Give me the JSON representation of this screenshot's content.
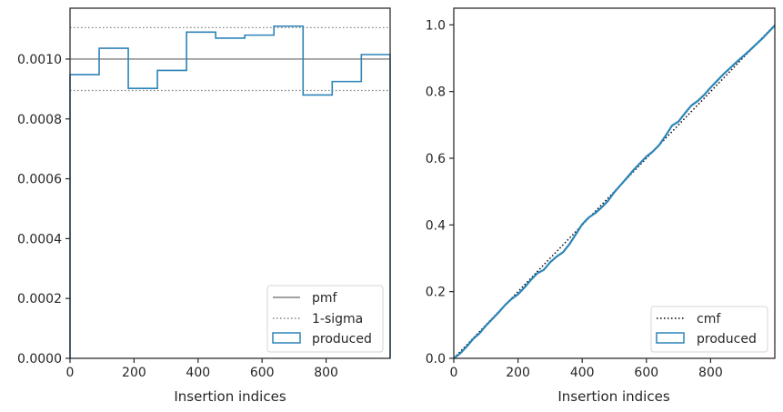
{
  "chart_data": [
    {
      "type": "step",
      "xlabel": "Insertion indices",
      "ylabel": "",
      "xlim": [
        0,
        1000
      ],
      "ylim": [
        0,
        0.00117
      ],
      "xticks": [
        0,
        200,
        400,
        600,
        800
      ],
      "xtick_labels": [
        "0",
        "200",
        "400",
        "600",
        "800"
      ],
      "yticks": [
        0,
        0.0002,
        0.0004,
        0.0006,
        0.0008,
        0.001
      ],
      "ytick_labels": [
        "0.0000",
        "0.0002",
        "0.0004",
        "0.0006",
        "0.0008",
        "0.0010"
      ],
      "reference_lines": [
        {
          "name": "pmf",
          "y": 0.001,
          "color": "#808080",
          "style": "solid"
        },
        {
          "name": "1-sigma",
          "y": 0.001105,
          "color": "#808080",
          "style": "dotted"
        },
        {
          "name": "1-sigma-lower",
          "y": 0.000895,
          "color": "#808080",
          "style": "dotted"
        }
      ],
      "series": [
        {
          "name": "produced",
          "color": "#2c84b8",
          "bin_edges": [
            0,
            91,
            182,
            273,
            364,
            455,
            546,
            637,
            728,
            819,
            910,
            1000
          ],
          "values": [
            0.000948,
            0.001036,
            0.000902,
            0.000962,
            0.00109,
            0.00107,
            0.00108,
            0.00111,
            0.00088,
            0.000925,
            0.001015
          ]
        }
      ],
      "legend": {
        "position": "lower-right",
        "entries": [
          "pmf",
          "1-sigma",
          "produced"
        ]
      },
      "grid": false
    },
    {
      "type": "line",
      "xlabel": "Insertion indices",
      "ylabel": "",
      "xlim": [
        0,
        1000
      ],
      "ylim": [
        0,
        1.05
      ],
      "xticks": [
        0,
        200,
        400,
        600,
        800
      ],
      "xtick_labels": [
        "0",
        "200",
        "400",
        "600",
        "800"
      ],
      "yticks": [
        0,
        0.2,
        0.4,
        0.6,
        0.8,
        1.0
      ],
      "ytick_labels": [
        "0.0",
        "0.2",
        "0.4",
        "0.6",
        "0.8",
        "1.0"
      ],
      "series": [
        {
          "name": "cmf",
          "color": "#000000",
          "style": "dotted",
          "x": [
            0,
            1000
          ],
          "y": [
            0,
            1.0
          ]
        },
        {
          "name": "produced",
          "color": "#2c84b8",
          "style": "solid",
          "x": [
            0,
            20,
            40,
            60,
            80,
            100,
            120,
            140,
            160,
            180,
            200,
            220,
            240,
            260,
            280,
            300,
            320,
            340,
            360,
            380,
            400,
            420,
            440,
            460,
            480,
            500,
            520,
            540,
            560,
            580,
            600,
            620,
            640,
            660,
            680,
            700,
            720,
            740,
            760,
            780,
            800,
            820,
            840,
            860,
            880,
            900,
            920,
            940,
            960,
            980,
            1000
          ],
          "y": [
            0,
            0.015,
            0.035,
            0.058,
            0.075,
            0.098,
            0.118,
            0.138,
            0.16,
            0.178,
            0.192,
            0.212,
            0.235,
            0.255,
            0.265,
            0.288,
            0.305,
            0.318,
            0.342,
            0.372,
            0.402,
            0.422,
            0.435,
            0.452,
            0.472,
            0.498,
            0.52,
            0.542,
            0.565,
            0.585,
            0.605,
            0.62,
            0.64,
            0.668,
            0.698,
            0.71,
            0.735,
            0.758,
            0.772,
            0.79,
            0.812,
            0.832,
            0.852,
            0.87,
            0.888,
            0.905,
            0.922,
            0.94,
            0.958,
            0.978,
            0.998
          ]
        }
      ],
      "legend": {
        "position": "lower-right",
        "entries": [
          "cmf",
          "produced"
        ]
      },
      "grid": false
    }
  ]
}
